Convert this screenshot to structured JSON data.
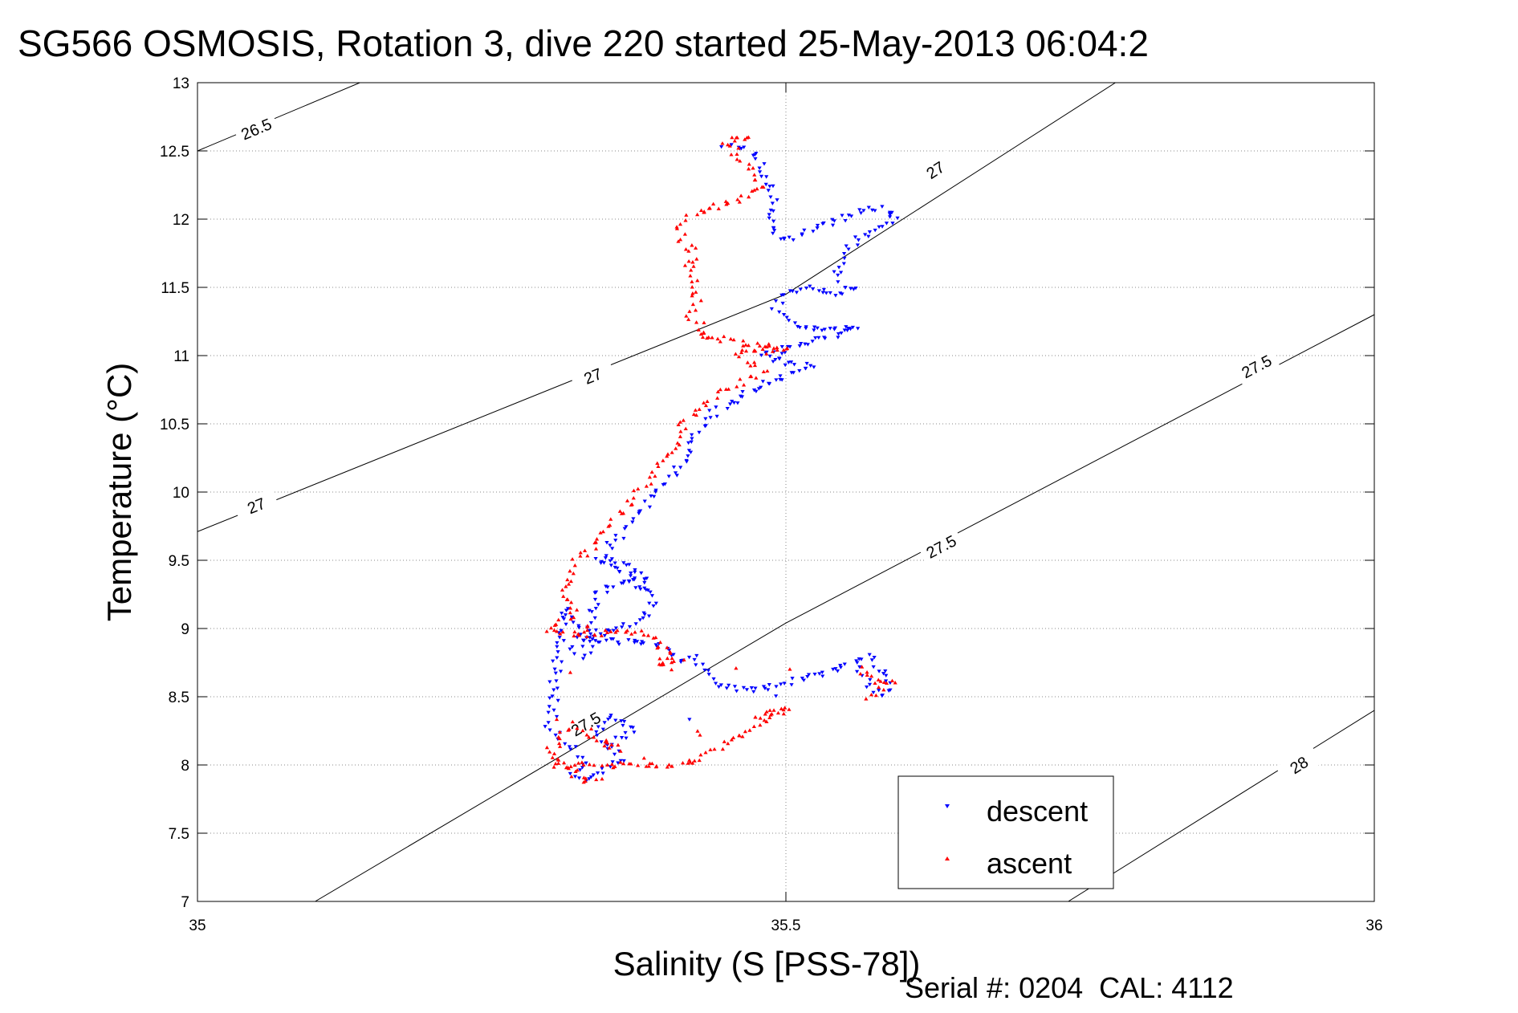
{
  "chart_data": {
    "type": "scatter",
    "title": "SG566 OSMOSIS, Rotation 3, dive 220 started 25-May-2013 06:04:2",
    "xlabel": "Salinity (S [PSS-78])",
    "ylabel": "Temperature (°C)",
    "xlim": [
      35,
      36
    ],
    "ylim": [
      7,
      13
    ],
    "xticks": [
      35,
      35.5,
      36
    ],
    "xtick_labels": [
      "35",
      "35.5",
      "36"
    ],
    "yticks": [
      7,
      7.5,
      8,
      8.5,
      9,
      9.5,
      10,
      10.5,
      11,
      11.5,
      12,
      12.5,
      13
    ],
    "ytick_labels": [
      "7",
      "7.5",
      "8",
      "8.5",
      "9",
      "9.5",
      "10",
      "10.5",
      "11",
      "11.5",
      "12",
      "12.5",
      "13"
    ],
    "grid": true,
    "legend": {
      "placement": "bottom-right",
      "entries": [
        "descent",
        "ascent"
      ]
    },
    "footer": "Serial #: 0204  CAL: 4112",
    "isopycnals": [
      {
        "value": 26.5,
        "points": [
          [
            35,
            12.5
          ],
          [
            35.138,
            13.0
          ]
        ],
        "labels": [
          {
            "text": "26.5",
            "x": 35.05,
            "y": 12.66
          }
        ]
      },
      {
        "value": 27,
        "points": [
          [
            35,
            9.71
          ],
          [
            35.5,
            11.45
          ],
          [
            35.78,
            13.0
          ]
        ],
        "labels": [
          {
            "text": "27",
            "x": 35.05,
            "y": 9.9
          },
          {
            "text": "27",
            "x": 35.336,
            "y": 10.85
          },
          {
            "text": "27",
            "x": 35.627,
            "y": 12.36
          }
        ]
      },
      {
        "value": 27.5,
        "points": [
          [
            35.1,
            7.0
          ],
          [
            35.5,
            9.04
          ],
          [
            36.0,
            11.3
          ]
        ],
        "labels": [
          {
            "text": "27.5",
            "x": 35.33,
            "y": 8.3
          },
          {
            "text": "27.5",
            "x": 35.632,
            "y": 9.6
          },
          {
            "text": "27.5",
            "x": 35.9,
            "y": 10.92
          }
        ]
      },
      {
        "value": 28,
        "points": [
          [
            35.74,
            7.0
          ],
          [
            36.0,
            8.4
          ]
        ],
        "labels": [
          {
            "text": "28",
            "x": 35.936,
            "y": 8.0
          }
        ]
      }
    ],
    "series": [
      {
        "name": "descent",
        "marker": "triangle-down",
        "color": "#0000ff",
        "path": [
          [
            35.45,
            12.55
          ],
          [
            35.47,
            12.5
          ],
          [
            35.48,
            12.35
          ],
          [
            35.49,
            12.2
          ],
          [
            35.485,
            12.05
          ],
          [
            35.49,
            11.95
          ],
          [
            35.49,
            11.88
          ],
          [
            35.5,
            11.85
          ],
          [
            35.53,
            11.95
          ],
          [
            35.56,
            12.05
          ],
          [
            35.58,
            12.08
          ],
          [
            35.59,
            12.05
          ],
          [
            35.59,
            12.0
          ],
          [
            35.58,
            11.95
          ],
          [
            35.56,
            11.85
          ],
          [
            35.55,
            11.75
          ],
          [
            35.545,
            11.6
          ],
          [
            35.55,
            11.52
          ],
          [
            35.56,
            11.5
          ],
          [
            35.54,
            11.45
          ],
          [
            35.52,
            11.5
          ],
          [
            35.5,
            11.45
          ],
          [
            35.49,
            11.35
          ],
          [
            35.5,
            11.25
          ],
          [
            35.52,
            11.2
          ],
          [
            35.55,
            11.2
          ],
          [
            35.56,
            11.22
          ],
          [
            35.54,
            11.15
          ],
          [
            35.52,
            11.1
          ],
          [
            35.5,
            11.05
          ],
          [
            35.48,
            11.0
          ],
          [
            35.5,
            10.95
          ],
          [
            35.52,
            10.92
          ],
          [
            35.5,
            10.85
          ],
          [
            35.48,
            10.8
          ],
          [
            35.46,
            10.7
          ],
          [
            35.44,
            10.6
          ],
          [
            35.43,
            10.5
          ],
          [
            35.42,
            10.4
          ],
          [
            35.415,
            10.3
          ],
          [
            35.41,
            10.2
          ],
          [
            35.4,
            10.1
          ],
          [
            35.39,
            10.0
          ],
          [
            35.38,
            9.9
          ],
          [
            35.37,
            9.8
          ],
          [
            35.36,
            9.7
          ],
          [
            35.35,
            9.6
          ],
          [
            35.34,
            9.5
          ],
          [
            35.36,
            9.42
          ],
          [
            35.38,
            9.35
          ],
          [
            35.39,
            9.2
          ],
          [
            35.38,
            9.08
          ],
          [
            35.36,
            9.0
          ],
          [
            35.34,
            8.95
          ],
          [
            35.33,
            8.92
          ],
          [
            35.36,
            8.9
          ],
          [
            35.38,
            8.9
          ],
          [
            35.4,
            8.85
          ],
          [
            35.41,
            8.75
          ],
          [
            35.42,
            8.8
          ],
          [
            35.43,
            8.7
          ],
          [
            35.44,
            8.6
          ],
          [
            35.46,
            8.56
          ],
          [
            35.48,
            8.55
          ],
          [
            35.5,
            8.6
          ],
          [
            35.55,
            8.72
          ],
          [
            35.57,
            8.8
          ],
          [
            35.58,
            8.7
          ],
          [
            35.59,
            8.65
          ],
          [
            35.59,
            8.55
          ],
          [
            35.58,
            8.52
          ],
          [
            35.57,
            8.6
          ],
          [
            35.56,
            8.7
          ],
          [
            35.35,
            8.15
          ],
          [
            35.36,
            8.2
          ],
          [
            35.37,
            8.25
          ],
          [
            35.365,
            8.3
          ],
          [
            35.35,
            8.35
          ],
          [
            35.34,
            8.2
          ],
          [
            35.35,
            8.1
          ],
          [
            35.36,
            8.05
          ],
          [
            35.345,
            7.95
          ],
          [
            35.33,
            7.9
          ],
          [
            35.32,
            7.95
          ],
          [
            35.33,
            8.0
          ],
          [
            35.32,
            8.1
          ],
          [
            35.31,
            8.2
          ],
          [
            35.3,
            8.28
          ],
          [
            35.31,
            9.15
          ],
          [
            35.32,
            9.05
          ],
          [
            35.33,
            8.95
          ],
          [
            35.32,
            8.85
          ],
          [
            35.33,
            8.8
          ],
          [
            35.34,
            9.25
          ],
          [
            35.36,
            9.35
          ],
          [
            35.38,
            9.3
          ],
          [
            35.37,
            9.45
          ],
          [
            35.35,
            9.5
          ]
        ]
      },
      {
        "name": "ascent",
        "marker": "triangle-up",
        "color": "#ff0000",
        "path": [
          [
            35.47,
            12.6
          ],
          [
            35.455,
            12.6
          ],
          [
            35.45,
            12.55
          ],
          [
            35.455,
            12.5
          ],
          [
            35.46,
            12.45
          ],
          [
            35.47,
            12.35
          ],
          [
            35.48,
            12.25
          ],
          [
            35.46,
            12.15
          ],
          [
            35.44,
            12.08
          ],
          [
            35.42,
            12.05
          ],
          [
            35.41,
            11.95
          ],
          [
            35.41,
            11.85
          ],
          [
            35.42,
            11.8
          ],
          [
            35.42,
            11.72
          ],
          [
            35.415,
            11.65
          ],
          [
            35.42,
            11.6
          ],
          [
            35.42,
            11.5
          ],
          [
            35.425,
            11.4
          ],
          [
            35.42,
            11.3
          ],
          [
            35.43,
            11.18
          ],
          [
            35.43,
            11.12
          ],
          [
            35.45,
            11.12
          ],
          [
            35.46,
            11.1
          ],
          [
            35.47,
            11.08
          ],
          [
            35.49,
            11.06
          ],
          [
            35.5,
            11.05
          ],
          [
            35.48,
            11.03
          ],
          [
            35.46,
            11.02
          ],
          [
            35.47,
            10.95
          ],
          [
            35.48,
            10.9
          ],
          [
            35.47,
            10.85
          ],
          [
            35.46,
            10.8
          ],
          [
            35.45,
            10.75
          ],
          [
            35.44,
            10.7
          ],
          [
            35.43,
            10.6
          ],
          [
            35.42,
            10.55
          ],
          [
            35.41,
            10.45
          ],
          [
            35.405,
            10.35
          ],
          [
            35.4,
            10.25
          ],
          [
            35.39,
            10.15
          ],
          [
            35.38,
            10.05
          ],
          [
            35.37,
            9.95
          ],
          [
            35.36,
            9.85
          ],
          [
            35.35,
            9.75
          ],
          [
            35.34,
            9.65
          ],
          [
            35.33,
            9.55
          ],
          [
            35.32,
            9.5
          ],
          [
            35.32,
            9.4
          ],
          [
            35.31,
            9.3
          ],
          [
            35.315,
            9.2
          ],
          [
            35.32,
            9.1
          ],
          [
            35.3,
            8.98
          ],
          [
            35.32,
            8.95
          ],
          [
            35.34,
            8.96
          ],
          [
            35.36,
            8.98
          ],
          [
            35.38,
            8.97
          ],
          [
            35.39,
            8.9
          ],
          [
            35.4,
            8.82
          ],
          [
            35.41,
            8.78
          ],
          [
            35.39,
            8.75
          ],
          [
            35.4,
            8.7
          ],
          [
            35.56,
            8.7
          ],
          [
            35.57,
            8.65
          ],
          [
            35.58,
            8.6
          ],
          [
            35.59,
            8.62
          ],
          [
            35.58,
            8.55
          ],
          [
            35.57,
            8.5
          ],
          [
            35.35,
            8.15
          ],
          [
            35.36,
            8.12
          ],
          [
            35.34,
            8.18
          ],
          [
            35.33,
            8.25
          ],
          [
            35.32,
            8.3
          ],
          [
            35.31,
            8.22
          ],
          [
            35.3,
            8.1
          ],
          [
            35.31,
            8.02
          ],
          [
            35.32,
            7.95
          ],
          [
            35.33,
            7.88
          ],
          [
            35.34,
            7.9
          ],
          [
            35.47,
            8.35
          ],
          [
            35.5,
            8.42
          ],
          [
            35.42,
            8.0
          ],
          [
            35.38,
            8.0
          ],
          [
            35.3,
            8.0
          ],
          [
            35.33,
            9.0
          ]
        ]
      }
    ]
  }
}
